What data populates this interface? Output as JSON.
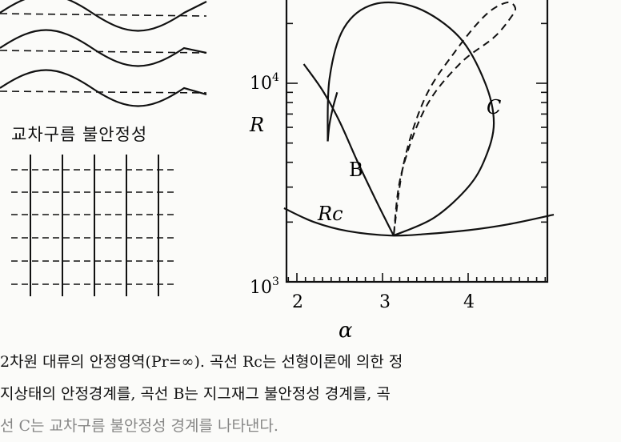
{
  "left_panel": {
    "cross_roll_label": "교차구름 불안정성"
  },
  "chart_data": {
    "type": "line",
    "xlabel": "α",
    "ylabel": "R",
    "x_ticks": [
      "2",
      "3",
      "4"
    ],
    "y_ticks": [
      {
        "base": "10",
        "exp": "3"
      },
      {
        "base": "10",
        "exp": "4"
      }
    ],
    "xlim": [
      1.85,
      5.0
    ],
    "ylog": true,
    "ylim": [
      1000,
      25000
    ],
    "curve_labels": {
      "B": "B",
      "C": "C",
      "Rc": "Rc"
    },
    "series": [
      {
        "name": "Rc",
        "style": "solid",
        "x": [
          1.85,
          2.2,
          2.6,
          3.1,
          3.5,
          4.0,
          4.5,
          5.0
        ],
        "y": [
          2350,
          2000,
          1800,
          1710,
          1740,
          1820,
          1960,
          2180
        ]
      },
      {
        "name": "B",
        "style": "solid",
        "x": [
          2.08,
          2.3,
          2.5,
          2.7,
          2.9,
          3.05,
          3.13
        ],
        "y": [
          12500,
          9200,
          6400,
          4100,
          2700,
          2000,
          1710
        ]
      },
      {
        "name": "B-upper",
        "style": "solid",
        "x": [
          2.47,
          2.42,
          2.38,
          2.36
        ],
        "y": [
          9000,
          7500,
          6200,
          5100
        ]
      },
      {
        "name": "C",
        "style": "solid",
        "x": [
          3.13,
          3.6,
          4.0,
          4.2,
          4.3,
          4.2,
          3.9,
          3.4,
          2.9,
          2.55,
          2.38,
          2.36
        ],
        "y": [
          1710,
          2100,
          3000,
          4200,
          6300,
          10000,
          17000,
          24000,
          25000,
          19000,
          10500,
          5100
        ]
      },
      {
        "name": "dashed",
        "style": "dashed",
        "x": [
          3.13,
          3.25,
          3.5,
          3.85,
          4.2,
          4.45,
          4.55,
          4.5,
          4.3,
          3.9,
          3.5,
          3.22,
          3.13
        ],
        "y": [
          1710,
          4000,
          8500,
          14500,
          22000,
          25500,
          24000,
          21500,
          17000,
          12500,
          7500,
          3500,
          1710
        ]
      }
    ]
  },
  "caption": {
    "line1": "2차원 대류의 안정영역(Pr=∞). 곡선 Rc는 선형이론에 의한 정",
    "line2": "지상태의 안정경계를, 곡선 B는 지그재그 불안정성 경계를, 곡",
    "line3": "선 C는 교차구름 불안정성 경계를 나타낸다."
  }
}
